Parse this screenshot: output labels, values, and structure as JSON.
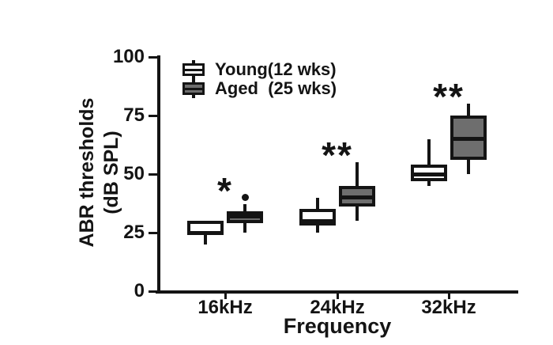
{
  "figure": {
    "background": "#ffffff",
    "ink_color": "#141414"
  },
  "chart_data": {
    "type": "boxplot",
    "title": "",
    "xlabel": "Frequency",
    "ylabel": "ABR thresholds (dB SPL)",
    "ylabel_lines": [
      "ABR thresholds",
      "(dB SPL)"
    ],
    "ylim": [
      0,
      100
    ],
    "yticks": [
      0,
      25,
      50,
      75,
      100
    ],
    "categories": [
      "16kHz",
      "24kHz",
      "32kHz"
    ],
    "grid": false,
    "legend_position": "top-left-inside",
    "series": [
      {
        "name": "Young(12 wks)",
        "fill": "#ffffff",
        "edge": "#141414",
        "boxes": [
          {
            "category": "16kHz",
            "whisker_low": 20,
            "q1": 24,
            "median": 25,
            "q3": 30,
            "whisker_high": 30,
            "outliers": []
          },
          {
            "category": "24kHz",
            "whisker_low": 25,
            "q1": 28,
            "median": 30,
            "q3": 35,
            "whisker_high": 40,
            "outliers": []
          },
          {
            "category": "32kHz",
            "whisker_low": 45,
            "q1": 47,
            "median": 50,
            "q3": 54,
            "whisker_high": 65,
            "outliers": []
          }
        ]
      },
      {
        "name": "Aged  (25 wks)",
        "fill": "#6e6e6e",
        "edge": "#141414",
        "boxes": [
          {
            "category": "16kHz",
            "whisker_low": 25,
            "q1": 29,
            "median": 32,
            "q3": 34,
            "whisker_high": 37,
            "outliers": [
              40
            ]
          },
          {
            "category": "24kHz",
            "whisker_low": 30,
            "q1": 36,
            "median": 40,
            "q3": 45,
            "whisker_high": 55,
            "outliers": []
          },
          {
            "category": "32kHz",
            "whisker_low": 50,
            "q1": 56,
            "median": 65,
            "q3": 75,
            "whisker_high": 80,
            "outliers": []
          }
        ]
      }
    ],
    "significance": [
      {
        "category": "16kHz",
        "label": "*"
      },
      {
        "category": "24kHz",
        "label": "**"
      },
      {
        "category": "32kHz",
        "label": "**"
      }
    ]
  }
}
